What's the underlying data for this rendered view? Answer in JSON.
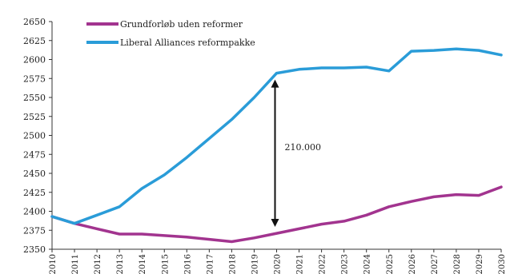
{
  "chart_data": {
    "type": "line",
    "x": [
      "2010",
      "2011",
      "2012",
      "2013",
      "2014",
      "2015",
      "2016",
      "2017",
      "2018",
      "2019",
      "2020",
      "2021",
      "2022",
      "2023",
      "2024",
      "2025",
      "2026",
      "2027",
      "2028",
      "2029",
      "2030"
    ],
    "series": [
      {
        "name": "Grundforløb uden reformer",
        "color": "#a2348f",
        "values": [
          2393,
          2384,
          2377,
          2370,
          2370,
          2368,
          2366,
          2363,
          2360,
          2365,
          2371,
          2377,
          2383,
          2387,
          2395,
          2406,
          2413,
          2419,
          2422,
          2421,
          2432
        ]
      },
      {
        "name": "Liberal Alliances reformpakke",
        "color": "#2a9cd8",
        "values": [
          2393,
          2384,
          2395,
          2406,
          2430,
          2448,
          2471,
          2496,
          2521,
          2550,
          2582,
          2587,
          2589,
          2589,
          2590,
          2585,
          2611,
          2612,
          2614,
          2612,
          2606
        ]
      }
    ],
    "ylim": [
      2350,
      2650
    ],
    "yticks": [
      "2650",
      "2625",
      "2600",
      "2575",
      "2550",
      "2525",
      "2500",
      "2475",
      "2450",
      "2425",
      "2400",
      "2375",
      "2350"
    ],
    "grid": false,
    "legend_position": "top-left",
    "annotation": {
      "label": "210.000",
      "x": "2020",
      "from": 2371,
      "to": 2582
    }
  }
}
